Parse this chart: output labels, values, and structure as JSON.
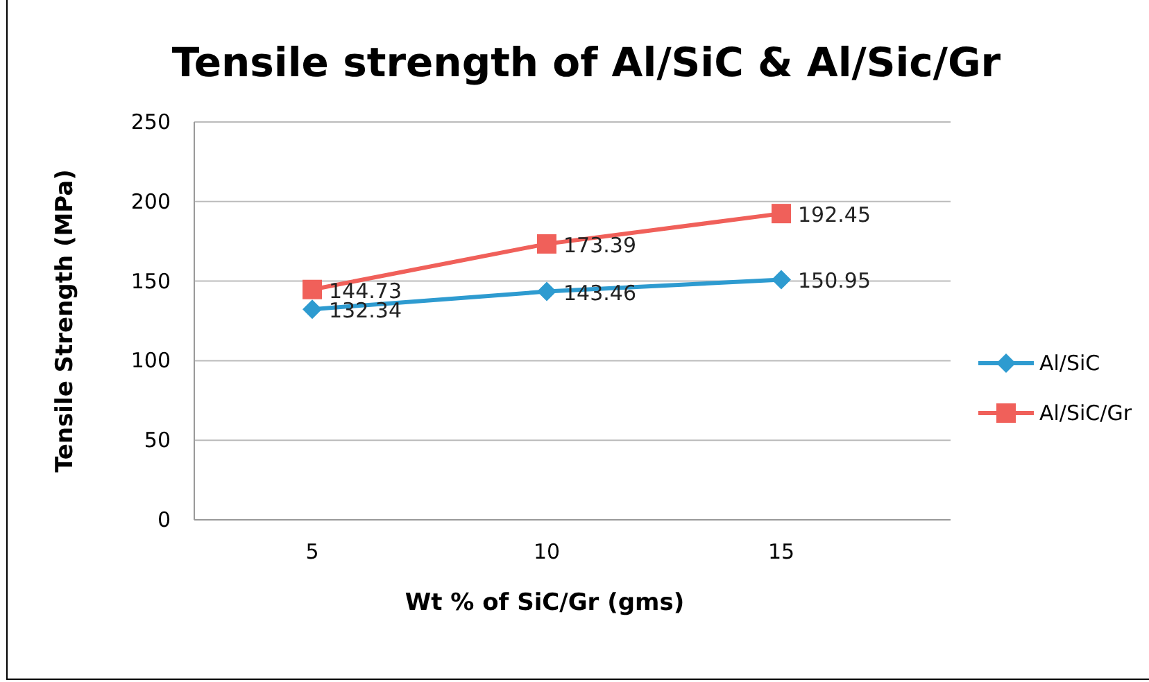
{
  "chart_data": {
    "type": "line",
    "title": "Tensile strength of Al/SiC & Al/Sic/Gr",
    "xlabel": "Wt % of SiC/Gr (gms)",
    "ylabel": "Tensile Strength (MPa)",
    "categories": [
      "5",
      "10",
      "15"
    ],
    "series": [
      {
        "name": "Al/SiC",
        "color": "#2e9bd0",
        "marker": "diamond",
        "values": [
          132.34,
          143.46,
          150.95
        ]
      },
      {
        "name": "Al/SiC/Gr",
        "color": "#f0605a",
        "marker": "square",
        "values": [
          144.73,
          173.39,
          192.45
        ]
      }
    ],
    "ylim": [
      0,
      250
    ],
    "yticks": [
      0,
      50,
      100,
      150,
      200,
      250
    ],
    "grid": "y",
    "legend": "right",
    "data_labels": true,
    "line_style": "solid"
  }
}
